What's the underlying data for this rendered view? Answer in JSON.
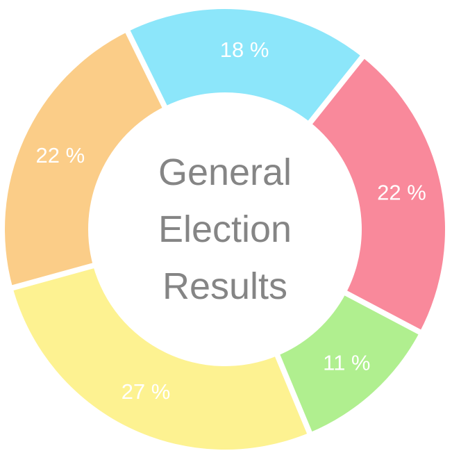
{
  "chart_data": {
    "type": "pie",
    "subtype": "donut",
    "title": "General Election Results",
    "title_lines": [
      "General",
      "Election",
      "Results"
    ],
    "segments": [
      {
        "label": "18 %",
        "value": 18,
        "color": "#8ce6fa"
      },
      {
        "label": "22 %",
        "value": 22,
        "color": "#f9899b"
      },
      {
        "label": "11 %",
        "value": 11,
        "color": "#b0ef8f"
      },
      {
        "label": "27 %",
        "value": 27,
        "color": "#fdf291"
      },
      {
        "label": "22 %",
        "value": 22,
        "color": "#fbcd88"
      }
    ],
    "start_angle_deg": -26.2,
    "direction": "clockwise",
    "label_color": "#ffffff",
    "title_color": "#858585",
    "background": "#ffffff",
    "legend": "none"
  }
}
